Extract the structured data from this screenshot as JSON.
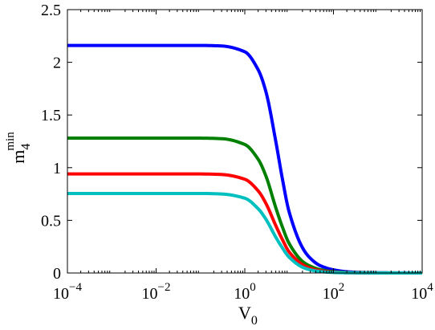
{
  "chart_data": {
    "type": "line",
    "title": "",
    "xlabel": {
      "base": "V",
      "subscript": "0"
    },
    "ylabel": {
      "base": "m",
      "subscript": "4",
      "superscript": "min"
    },
    "x_scale": "log",
    "xlim": [
      0.0001,
      10000
    ],
    "ylim": [
      0,
      2.5
    ],
    "grid": false,
    "x_ticks": [
      {
        "value": 0.0001,
        "base": "10",
        "exp": "−4"
      },
      {
        "value": 0.01,
        "base": "10",
        "exp": "−2"
      },
      {
        "value": 1,
        "base": "10",
        "exp": "0"
      },
      {
        "value": 100,
        "base": "10",
        "exp": "2"
      },
      {
        "value": 10000,
        "base": "10",
        "exp": "4"
      }
    ],
    "y_ticks": [
      {
        "value": 0,
        "label": "0"
      },
      {
        "value": 0.5,
        "label": "0.5"
      },
      {
        "value": 1,
        "label": "1"
      },
      {
        "value": 1.5,
        "label": "1.5"
      },
      {
        "value": 2,
        "label": "2"
      },
      {
        "value": 2.5,
        "label": "2.5"
      }
    ],
    "x": [
      0.0001,
      0.001,
      0.01,
      0.1,
      0.3,
      1,
      2,
      3,
      5,
      7,
      10,
      20,
      30,
      50,
      100,
      200,
      500,
      1000,
      10000
    ],
    "series": [
      {
        "color": "#0000ff",
        "values": [
          2.16,
          2.16,
          2.16,
          2.16,
          2.155,
          2.1,
          1.93,
          1.72,
          1.25,
          0.9,
          0.58,
          0.24,
          0.14,
          0.07,
          0.03,
          0.012,
          0.004,
          0.002,
          0.0
        ]
      },
      {
        "color": "#008000",
        "values": [
          1.28,
          1.28,
          1.28,
          1.28,
          1.275,
          1.22,
          1.08,
          0.92,
          0.62,
          0.44,
          0.28,
          0.11,
          0.065,
          0.032,
          0.012,
          0.005,
          0.002,
          0.001,
          0.0
        ]
      },
      {
        "color": "#ff0000",
        "values": [
          0.94,
          0.94,
          0.94,
          0.94,
          0.935,
          0.89,
          0.78,
          0.66,
          0.45,
          0.32,
          0.2,
          0.08,
          0.045,
          0.022,
          0.008,
          0.003,
          0.001,
          0.0,
          0.0
        ]
      },
      {
        "color": "#00bfbf",
        "values": [
          0.755,
          0.755,
          0.755,
          0.755,
          0.75,
          0.71,
          0.61,
          0.51,
          0.34,
          0.24,
          0.15,
          0.055,
          0.03,
          0.014,
          0.005,
          0.002,
          0.001,
          0.0,
          0.0
        ]
      }
    ]
  }
}
